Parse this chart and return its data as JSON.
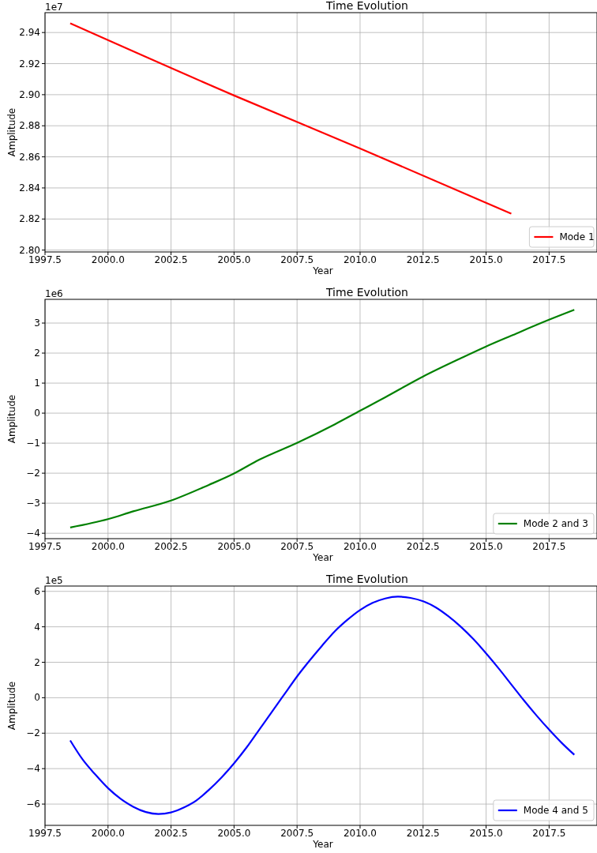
{
  "chart_data": [
    {
      "type": "line",
      "title": "Time Evolution",
      "xlabel": "Year",
      "ylabel": "Amplitude",
      "annotations": [
        "1e7"
      ],
      "grid": true,
      "legend": "bottom right",
      "x": [
        1998.5,
        2005,
        2010,
        2016
      ],
      "series": [
        {
          "name": "Mode 1",
          "color": "#ff0000",
          "values": [
            2.9459,
            2.8995,
            2.8654,
            2.8234
          ]
        }
      ],
      "xlim": [
        1997.5,
        2019.4
      ],
      "xticks": [
        1997.5,
        {
          "value": 2000,
          "label": "2000.0"
        },
        2002.5,
        {
          "value": 2005,
          "label": "2005.0"
        },
        2007.5,
        {
          "value": 2010,
          "label": "2010.0"
        },
        2012.5,
        {
          "value": 2015,
          "label": "2015.0"
        },
        2017.5
      ],
      "ylim": [
        2.7988,
        2.9528
      ],
      "yticks": [
        {
          "value": 2.8,
          "label": "2.80"
        },
        2.82,
        2.84,
        2.86,
        2.88,
        {
          "value": 2.9,
          "label": "2.90"
        },
        2.92,
        2.94
      ]
    },
    {
      "type": "line",
      "title": "Time Evolution",
      "xlabel": "Year",
      "ylabel": "Amplitude",
      "annotations": [
        "1e6"
      ],
      "grid": true,
      "legend": "bottom right",
      "x": [
        1998.5,
        2000,
        2001,
        2002.5,
        2004,
        2005,
        2006,
        2007.5,
        2009,
        2010,
        2011,
        2012.5,
        2014,
        2015,
        2016,
        2017.5,
        2018.5
      ],
      "series": [
        {
          "name": "Mode 2 and 3",
          "color": "#008000",
          "values": [
            -3.81,
            -3.53,
            -3.27,
            -2.91,
            -2.39,
            -2.01,
            -1.55,
            -0.99,
            -0.37,
            0.08,
            0.53,
            1.22,
            1.83,
            2.22,
            2.58,
            3.11,
            3.44
          ]
        }
      ],
      "xlim": [
        1997.5,
        2019.4
      ],
      "xticks": [
        1997.5,
        {
          "value": 2000,
          "label": "2000.0"
        },
        2002.5,
        {
          "value": 2005,
          "label": "2005.0"
        },
        2007.5,
        {
          "value": 2010,
          "label": "2010.0"
        },
        2012.5,
        {
          "value": 2015,
          "label": "2015.0"
        },
        2017.5
      ],
      "ylim": [
        -4.18,
        3.79
      ],
      "yticks": [
        {
          "value": -4,
          "label": "−4"
        },
        {
          "value": -3,
          "label": "−3"
        },
        {
          "value": -2,
          "label": "−2"
        },
        {
          "value": -1,
          "label": "−1"
        },
        0,
        1,
        2,
        3
      ]
    },
    {
      "type": "line",
      "title": "Time Evolution",
      "xlabel": "Year",
      "ylabel": "Amplitude",
      "annotations": [
        "1e5"
      ],
      "grid": true,
      "legend": "bottom right",
      "x": [
        1998.5,
        1999,
        1999.5,
        2000,
        2000.5,
        2001,
        2001.5,
        2002,
        2002.5,
        2003,
        2003.5,
        2004,
        2004.5,
        2005,
        2005.5,
        2006,
        2006.5,
        2007,
        2007.5,
        2008,
        2008.5,
        2009,
        2009.5,
        2010,
        2010.5,
        2011,
        2011.5,
        2012,
        2012.5,
        2013,
        2013.5,
        2014,
        2014.5,
        2015,
        2015.5,
        2016,
        2016.5,
        2017,
        2017.5,
        2018,
        2018.5
      ],
      "series": [
        {
          "name": "Mode 4 and 5",
          "color": "#0000ff",
          "values": [
            -2.41,
            -3.5,
            -4.34,
            -5.1,
            -5.7,
            -6.15,
            -6.45,
            -6.56,
            -6.47,
            -6.2,
            -5.8,
            -5.2,
            -4.5,
            -3.7,
            -2.8,
            -1.8,
            -0.8,
            0.2,
            1.2,
            2.1,
            2.95,
            3.75,
            4.4,
            4.95,
            5.35,
            5.6,
            5.7,
            5.63,
            5.44,
            5.1,
            4.6,
            4.0,
            3.3,
            2.5,
            1.65,
            0.75,
            -0.15,
            -1.0,
            -1.8,
            -2.55,
            -3.22
          ]
        }
      ],
      "xlim": [
        1997.5,
        2019.4
      ],
      "xticks": [
        1997.5,
        {
          "value": 2000,
          "label": "2000.0"
        },
        2002.5,
        {
          "value": 2005,
          "label": "2005.0"
        },
        2007.5,
        {
          "value": 2010,
          "label": "2010.0"
        },
        2012.5,
        {
          "value": 2015,
          "label": "2015.0"
        },
        2017.5
      ],
      "ylim": [
        -7.2,
        6.3
      ],
      "yticks": [
        {
          "value": -6,
          "label": "−6"
        },
        {
          "value": -4,
          "label": "−4"
        },
        {
          "value": -2,
          "label": "−2"
        },
        0,
        2,
        4,
        6
      ]
    }
  ]
}
